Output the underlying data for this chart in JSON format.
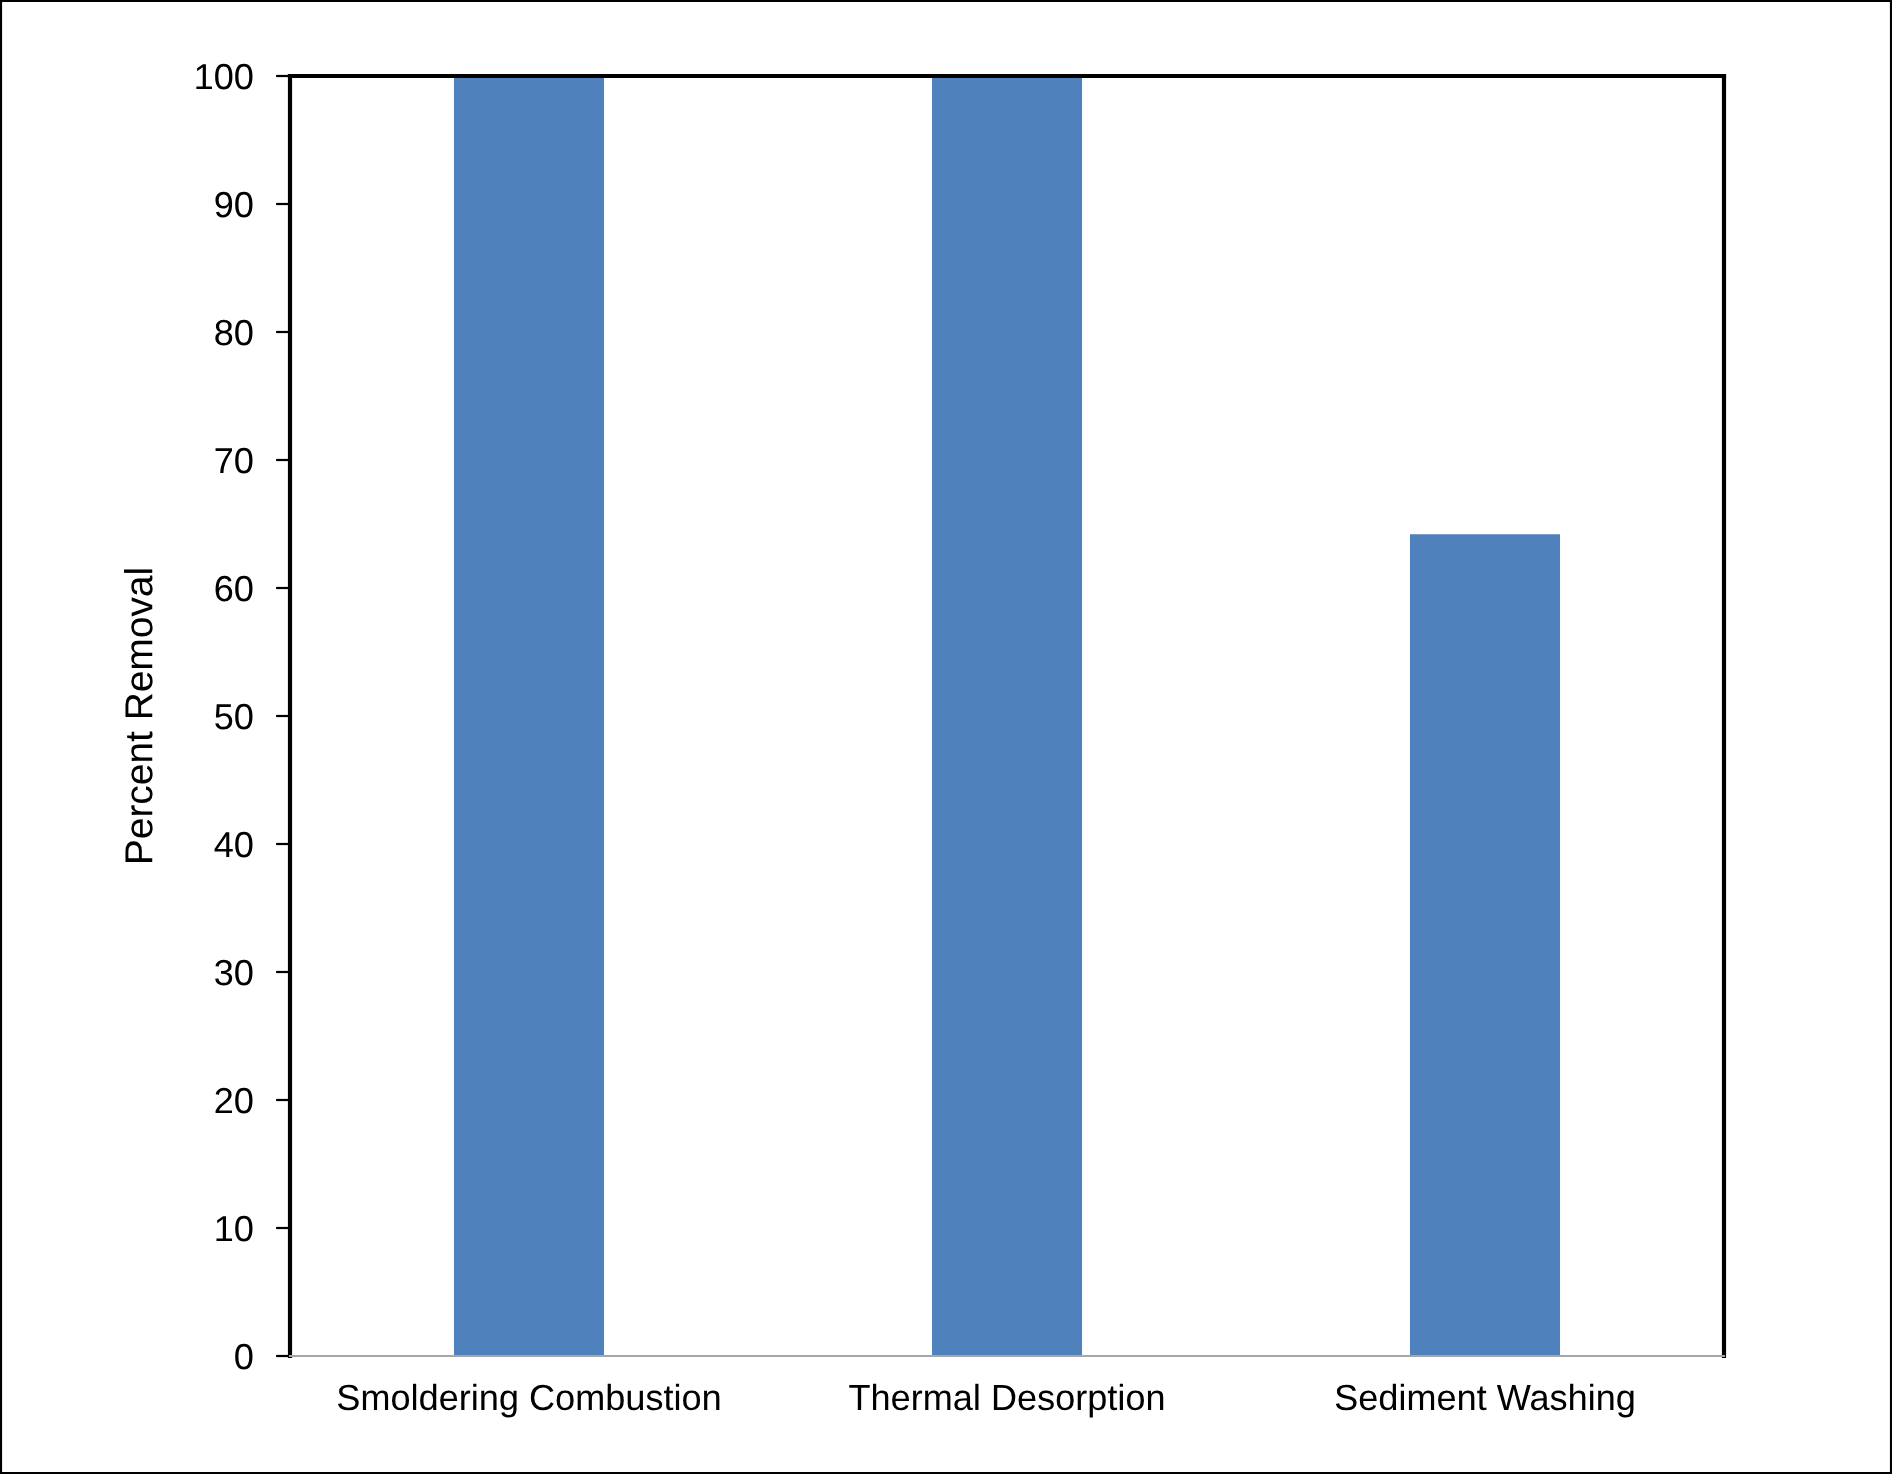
{
  "chart_data": {
    "type": "bar",
    "ylabel": "Percent Removal",
    "categories": [
      "Smoldering Combustion",
      "Thermal Desorption",
      "Sediment Washing"
    ],
    "values": [
      100,
      100,
      64.2
    ],
    "color": "#4f81bd",
    "ylim": [
      0,
      100
    ],
    "yticks": [
      0,
      10,
      20,
      30,
      40,
      50,
      60,
      70,
      80,
      90,
      100
    ],
    "grid": false,
    "legend": false
  }
}
